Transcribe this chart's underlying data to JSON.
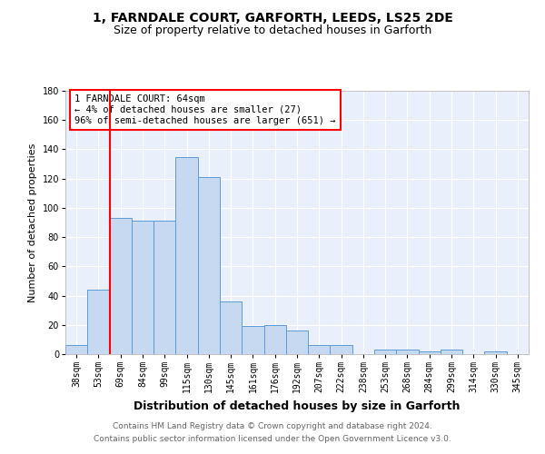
{
  "title1": "1, FARNDALE COURT, GARFORTH, LEEDS, LS25 2DE",
  "title2": "Size of property relative to detached houses in Garforth",
  "xlabel": "Distribution of detached houses by size in Garforth",
  "ylabel": "Number of detached properties",
  "categories": [
    "38sqm",
    "53sqm",
    "69sqm",
    "84sqm",
    "99sqm",
    "115sqm",
    "130sqm",
    "145sqm",
    "161sqm",
    "176sqm",
    "192sqm",
    "207sqm",
    "222sqm",
    "238sqm",
    "253sqm",
    "268sqm",
    "284sqm",
    "299sqm",
    "314sqm",
    "330sqm",
    "345sqm"
  ],
  "values": [
    6,
    44,
    93,
    91,
    91,
    135,
    121,
    36,
    19,
    20,
    16,
    6,
    6,
    0,
    3,
    3,
    2,
    3,
    0,
    2,
    0
  ],
  "bar_color": "#c6d9f0",
  "bar_edge_color": "#5b9bd5",
  "red_line_x": 1.5,
  "annotation_text": "1 FARNDALE COURT: 64sqm\n← 4% of detached houses are smaller (27)\n96% of semi-detached houses are larger (651) →",
  "annotation_box_color": "white",
  "annotation_box_edge": "red",
  "ylim": [
    0,
    180
  ],
  "yticks": [
    0,
    20,
    40,
    60,
    80,
    100,
    120,
    140,
    160,
    180
  ],
  "footer1": "Contains HM Land Registry data © Crown copyright and database right 2024.",
  "footer2": "Contains public sector information licensed under the Open Government Licence v3.0.",
  "background_color": "#eaf0fb",
  "grid_color": "white",
  "title_fontsize": 10,
  "subtitle_fontsize": 9,
  "xlabel_fontsize": 9,
  "ylabel_fontsize": 8,
  "tick_fontsize": 7,
  "annotation_fontsize": 7.5,
  "footer_fontsize": 6.5
}
